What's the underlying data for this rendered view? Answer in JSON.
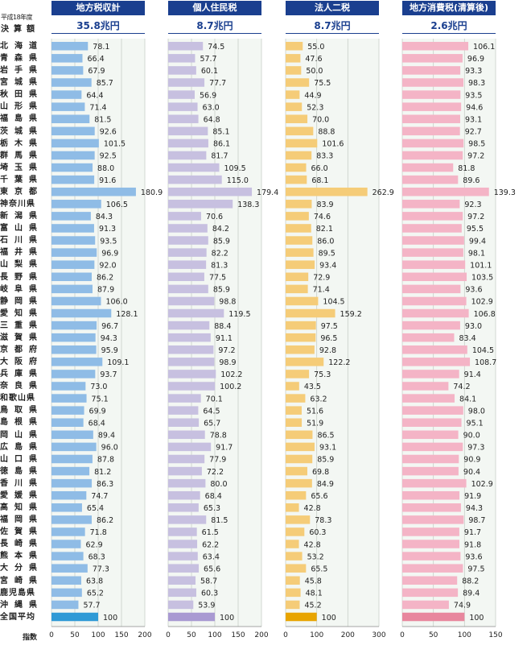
{
  "header": {
    "fiscal_year": "平成18年度",
    "left_label": "決算額"
  },
  "footer": {
    "index_label": "指数"
  },
  "prefectures": [
    "北海道",
    "青森県",
    "岩手県",
    "宮城県",
    "秋田県",
    "山形県",
    "福島県",
    "茨城県",
    "栃木県",
    "群馬県",
    "埼玉県",
    "千葉県",
    "東京都",
    "神奈川県",
    "新潟県",
    "富山県",
    "石川県",
    "福井県",
    "山梨県",
    "長野県",
    "岐阜県",
    "静岡県",
    "愛知県",
    "三重県",
    "滋賀県",
    "京都府",
    "大阪府",
    "兵庫県",
    "奈良県",
    "和歌山県",
    "鳥取県",
    "島根県",
    "岡山県",
    "広島県",
    "山口県",
    "徳島県",
    "香川県",
    "愛媛県",
    "高知県",
    "福岡県",
    "佐賀県",
    "長崎県",
    "熊本県",
    "大分県",
    "宮崎県",
    "鹿児島県",
    "沖縄県",
    "全国平均"
  ],
  "chart_data": [
    {
      "type": "bar",
      "title": "地方税収計",
      "total": "35.8兆円",
      "xlim": [
        0,
        200
      ],
      "xticks": [
        0,
        50,
        100,
        150,
        200
      ],
      "color": "#8fbce6",
      "average_color": "#2f9ad6",
      "categories_ref": "prefectures",
      "values": [
        78.1,
        66.4,
        67.9,
        85.7,
        64.4,
        71.4,
        81.5,
        92.6,
        101.5,
        92.5,
        88.0,
        91.6,
        180.9,
        106.5,
        84.3,
        91.3,
        93.5,
        96.9,
        92.0,
        86.2,
        87.9,
        106.0,
        128.1,
        96.7,
        94.3,
        95.9,
        109.1,
        93.7,
        73.0,
        75.1,
        69.9,
        68.4,
        89.4,
        96.0,
        87.8,
        81.2,
        86.3,
        74.7,
        65.4,
        86.2,
        71.8,
        62.9,
        68.3,
        77.3,
        63.8,
        65.2,
        57.7,
        100
      ]
    },
    {
      "type": "bar",
      "title": "個人住民税",
      "total": "8.7兆円",
      "xlim": [
        0,
        200
      ],
      "xticks": [
        0,
        50,
        100,
        150,
        200
      ],
      "color": "#c7c0e0",
      "average_color": "#a99ad2",
      "categories_ref": "prefectures",
      "values": [
        74.5,
        57.7,
        60.1,
        77.7,
        56.9,
        63.0,
        64.8,
        85.1,
        86.1,
        81.7,
        109.5,
        115.0,
        179.4,
        138.3,
        70.6,
        84.2,
        85.9,
        82.2,
        81.3,
        77.5,
        85.9,
        98.8,
        119.5,
        88.4,
        91.1,
        97.2,
        98.9,
        102.2,
        100.2,
        70.1,
        64.5,
        65.7,
        78.8,
        91.7,
        77.9,
        72.2,
        80.0,
        68.4,
        65.3,
        81.5,
        61.5,
        62.2,
        63.4,
        65.6,
        58.7,
        60.3,
        53.9,
        100
      ]
    },
    {
      "type": "bar",
      "title": "法人二税",
      "total": "8.7兆円",
      "xlim": [
        0,
        300
      ],
      "xticks": [
        0,
        100,
        200,
        300
      ],
      "color": "#f5cc78",
      "average_color": "#e8a400",
      "categories_ref": "prefectures",
      "values": [
        55.0,
        47.6,
        50.0,
        75.5,
        44.9,
        52.3,
        70.0,
        88.8,
        101.6,
        83.3,
        66.0,
        68.1,
        262.9,
        83.9,
        74.6,
        82.1,
        86.0,
        89.5,
        93.4,
        72.9,
        71.4,
        104.5,
        159.2,
        97.5,
        96.5,
        92.8,
        122.2,
        75.3,
        43.5,
        63.2,
        51.6,
        51.9,
        86.5,
        93.1,
        85.9,
        69.8,
        84.9,
        65.6,
        42.8,
        78.3,
        60.3,
        42.8,
        53.2,
        65.5,
        45.8,
        48.1,
        45.2,
        100
      ]
    },
    {
      "type": "bar",
      "title": "地方消費税(清算後)",
      "total": "2.6兆円",
      "xlim": [
        0,
        150
      ],
      "xticks": [
        0,
        50,
        100,
        150
      ],
      "color": "#f4b4c6",
      "average_color": "#e8879e",
      "categories_ref": "prefectures",
      "values": [
        106.1,
        96.9,
        93.3,
        98.3,
        93.5,
        94.6,
        93.1,
        92.7,
        98.5,
        97.2,
        81.8,
        89.6,
        139.3,
        92.3,
        97.2,
        95.5,
        99.4,
        98.1,
        101.1,
        103.5,
        93.6,
        102.9,
        106.8,
        93.0,
        83.4,
        104.5,
        108.7,
        91.4,
        74.2,
        84.1,
        98.0,
        95.1,
        90.0,
        97.3,
        90.9,
        90.4,
        102.9,
        91.9,
        94.3,
        98.7,
        91.7,
        91.8,
        93.6,
        97.5,
        88.2,
        89.4,
        74.9,
        100
      ]
    }
  ]
}
